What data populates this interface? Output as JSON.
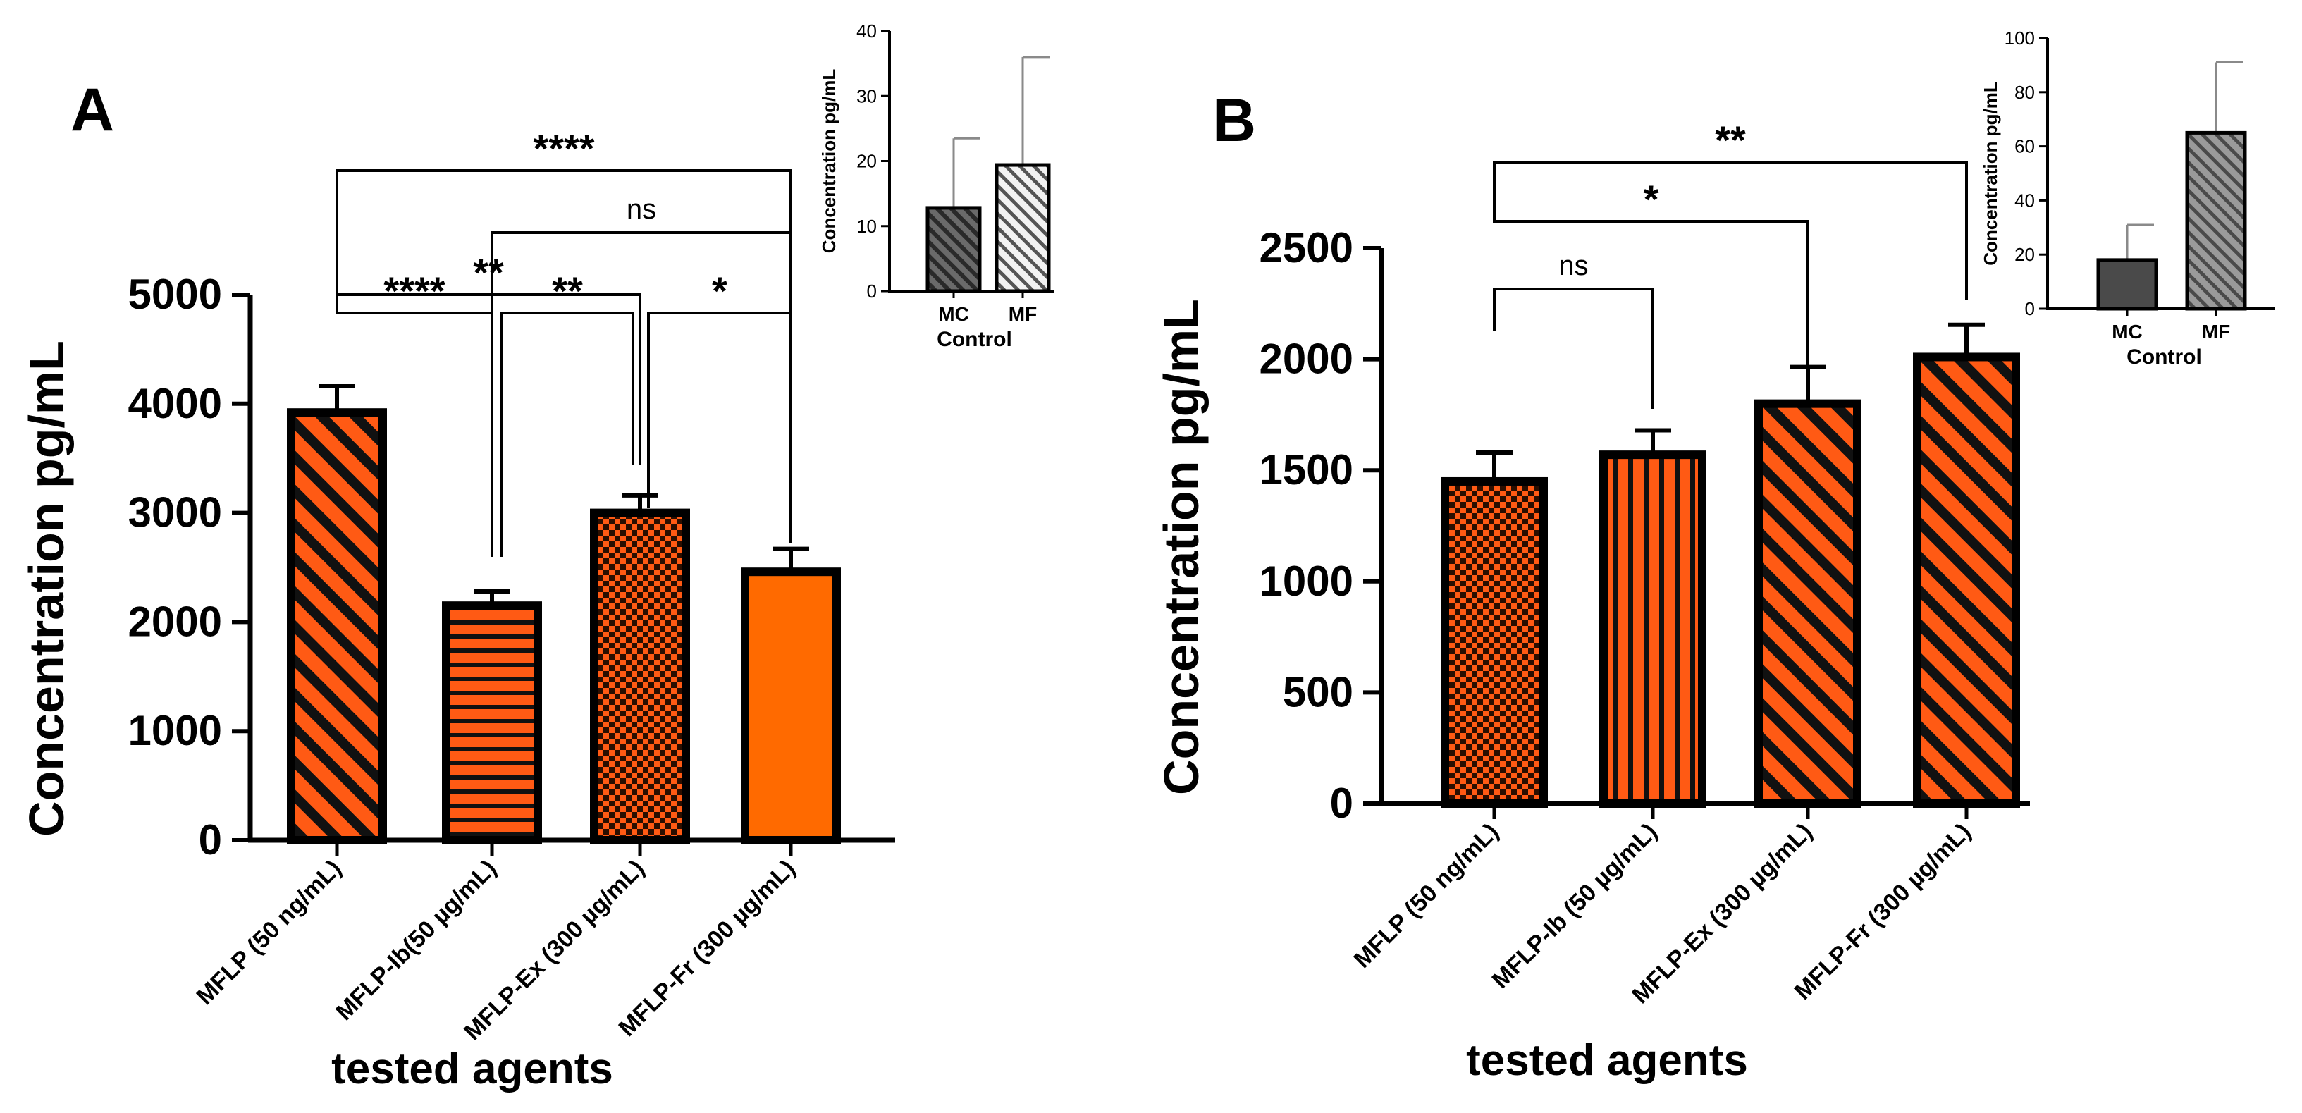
{
  "colors": {
    "main_orange": "#ff6a00",
    "hatch_orange": "#ff5a14",
    "axis": "#000000",
    "inset_dark": "#4a4a4a",
    "inset_light": "#d0d0d0",
    "error_bar_gray": "#8a8a8a"
  },
  "chart_data": [
    {
      "panel": "A",
      "type": "bar",
      "ylabel": "Concentration pg/mL",
      "xlabel": "tested agents",
      "ylim": [
        0,
        5000
      ],
      "yticks": [
        0,
        1000,
        2000,
        3000,
        4000,
        5000
      ],
      "ytick_labels": [
        "0",
        "1000",
        "2000",
        "3000",
        "4000",
        "5000"
      ],
      "categories": [
        "MFLP (50 ng/mL)",
        "MFLP-Ib(50 µg/mL)",
        "MFLP-Ex (300 µg/mL)",
        "MFLP-Fr (300 µg/mL)"
      ],
      "values": [
        3920,
        2150,
        3000,
        2460
      ],
      "errors": [
        240,
        130,
        160,
        210
      ],
      "patterns": [
        "diag",
        "horiz",
        "checker",
        "solid"
      ],
      "significance": [
        {
          "from": 0,
          "to": 3,
          "label": "****"
        },
        {
          "from": 1,
          "to": 3,
          "label": "ns"
        },
        {
          "from": 0,
          "to": 2,
          "label": "**"
        },
        {
          "from": 0,
          "to": 1,
          "label": "****"
        },
        {
          "from": 1,
          "to": 2,
          "label": "**"
        },
        {
          "from": 2,
          "to": 3,
          "label": "*"
        }
      ],
      "inset": {
        "type": "bar",
        "ylabel": "Concentration pg/mL",
        "xlabel": "Control",
        "ylim": [
          0,
          40
        ],
        "yticks": [
          0,
          10,
          20,
          30,
          40
        ],
        "ytick_labels": [
          "0",
          "10",
          "20",
          "30",
          "40"
        ],
        "categories": [
          "MC",
          "MF"
        ],
        "values": [
          12.8,
          19.4
        ],
        "errors": [
          10.7,
          16.6
        ]
      }
    },
    {
      "panel": "B",
      "type": "bar",
      "ylabel": "Concentration pg/mL",
      "xlabel": "tested agents",
      "ylim": [
        0,
        2500
      ],
      "yticks": [
        0,
        500,
        1000,
        1500,
        2000,
        2500
      ],
      "ytick_labels": [
        "0",
        "500",
        "1000",
        "1500",
        "2000",
        "2500"
      ],
      "categories": [
        "MFLP (50 ng/mL)",
        "MFLP-Ib (50 µg/mL)",
        "MFLP-Ex (300 µg/mL)",
        "MFLP-Fr (300 µg/mL)"
      ],
      "values": [
        1450,
        1570,
        1800,
        2010
      ],
      "errors": [
        130,
        110,
        165,
        145
      ],
      "patterns": [
        "checker",
        "vert",
        "diag",
        "diag"
      ],
      "significance": [
        {
          "from": 0,
          "to": 3,
          "label": "**"
        },
        {
          "from": 0,
          "to": 2,
          "label": "*"
        },
        {
          "from": 0,
          "to": 1,
          "label": "ns"
        }
      ],
      "inset": {
        "type": "bar",
        "ylabel": "Concentration pg/mL",
        "xlabel": "Control",
        "ylim": [
          0,
          100
        ],
        "yticks": [
          0,
          20,
          40,
          60,
          80,
          100
        ],
        "ytick_labels": [
          "0",
          "20",
          "40",
          "60",
          "80",
          "100"
        ],
        "categories": [
          "MC",
          "MF"
        ],
        "values": [
          18,
          65
        ],
        "errors": [
          13,
          26
        ]
      }
    }
  ]
}
